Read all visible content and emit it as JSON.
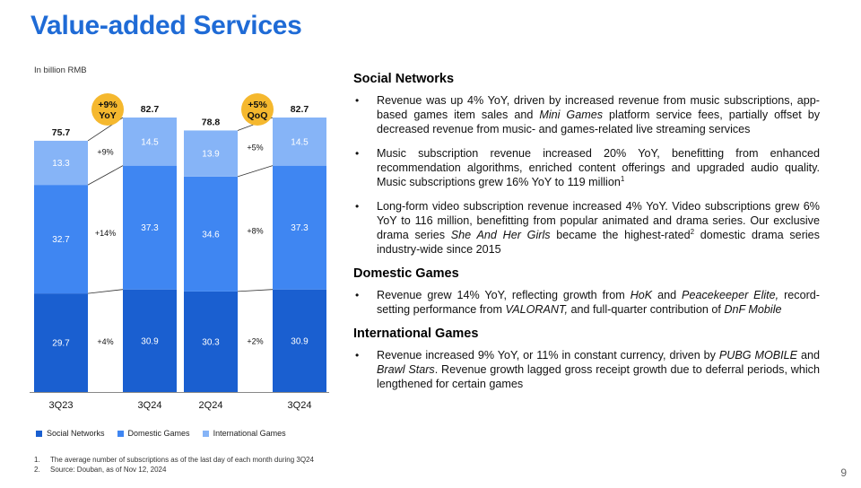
{
  "title": "Value-added Services",
  "unit_label": "In billion RMB",
  "colors": {
    "social": "#1a5fd0",
    "domestic": "#3f86f2",
    "international": "#86b4f7",
    "badge": "#f5b82e",
    "title": "#1f6bd6"
  },
  "chart_data": {
    "type": "bar",
    "stacked": true,
    "groups": [
      {
        "badge_line1": "+9%",
        "badge_line2": "YoY",
        "categories": [
          "3Q23",
          "3Q24"
        ],
        "series": [
          {
            "name": "Social Networks",
            "values": [
              29.7,
              30.9
            ]
          },
          {
            "name": "Domestic Games",
            "values": [
              32.7,
              37.3
            ]
          },
          {
            "name": "International Games",
            "values": [
              13.3,
              14.5
            ]
          }
        ],
        "totals": [
          "75.7",
          "82.7"
        ],
        "growth_labels": [
          "+4%",
          "+14%",
          "+9%"
        ]
      },
      {
        "badge_line1": "+5%",
        "badge_line2": "QoQ",
        "categories": [
          "2Q24",
          "3Q24"
        ],
        "series": [
          {
            "name": "Social Networks",
            "values": [
              30.3,
              30.9
            ]
          },
          {
            "name": "Domestic Games",
            "values": [
              34.6,
              37.3
            ]
          },
          {
            "name": "International Games",
            "values": [
              13.9,
              14.5
            ]
          }
        ],
        "totals": [
          "78.8",
          "82.7"
        ],
        "growth_labels": [
          "+2%",
          "+8%",
          "+5%"
        ]
      }
    ],
    "legend": [
      "Social Networks",
      "Domestic Games",
      "International Games"
    ],
    "legend_position": "bottom"
  },
  "sections": [
    {
      "heading": "Social Networks",
      "bullets": [
        [
          {
            "t": "Revenue was up 4% YoY, driven by increased revenue from music subscriptions, app-based games item sales and "
          },
          {
            "t": "Mini Games",
            "i": true
          },
          {
            "t": " platform service fees, partially offset by decreased revenue from music- and games-related live streaming services"
          }
        ],
        [
          {
            "t": "Music subscription revenue increased 20% YoY, benefitting from enhanced recommendation algorithms, enriched content offerings and upgraded audio quality. Music subscriptions grew 16% YoY to 119 million"
          },
          {
            "t": "1",
            "sup": true
          }
        ],
        [
          {
            "t": "Long-form video subscription revenue increased 4% YoY. Video subscriptions grew 6% YoY to 116 million, benefitting from popular animated and drama series. Our exclusive drama series "
          },
          {
            "t": "She And Her Girls",
            "i": true
          },
          {
            "t": " became the highest-rated"
          },
          {
            "t": "2",
            "sup": true
          },
          {
            "t": " domestic drama series industry-wide since 2015"
          }
        ]
      ]
    },
    {
      "heading": "Domestic Games",
      "bullets": [
        [
          {
            "t": "Revenue grew 14% YoY, reflecting growth from "
          },
          {
            "t": "HoK",
            "i": true
          },
          {
            "t": " and "
          },
          {
            "t": "Peacekeeper Elite,",
            "i": true
          },
          {
            "t": " record-setting performance from "
          },
          {
            "t": "VALORANT,",
            "i": true
          },
          {
            "t": " and full-quarter contribution of "
          },
          {
            "t": "DnF Mobile",
            "i": true
          }
        ]
      ]
    },
    {
      "heading": "International Games",
      "bullets": [
        [
          {
            "t": "Revenue increased 9% YoY, or 11% in constant currency, driven by "
          },
          {
            "t": "PUBG MOBILE",
            "i": true
          },
          {
            "t": " and "
          },
          {
            "t": "Brawl Stars",
            "i": true
          },
          {
            "t": ". Revenue growth lagged gross receipt growth due to deferral periods, which lengthened for certain games"
          }
        ]
      ]
    }
  ],
  "footnotes": [
    {
      "num": "1.",
      "text": "The average number of subscriptions as of the last day of each month during 3Q24"
    },
    {
      "num": "2.",
      "text": "Source: Douban, as of Nov 12, 2024"
    }
  ],
  "page_number": "9"
}
